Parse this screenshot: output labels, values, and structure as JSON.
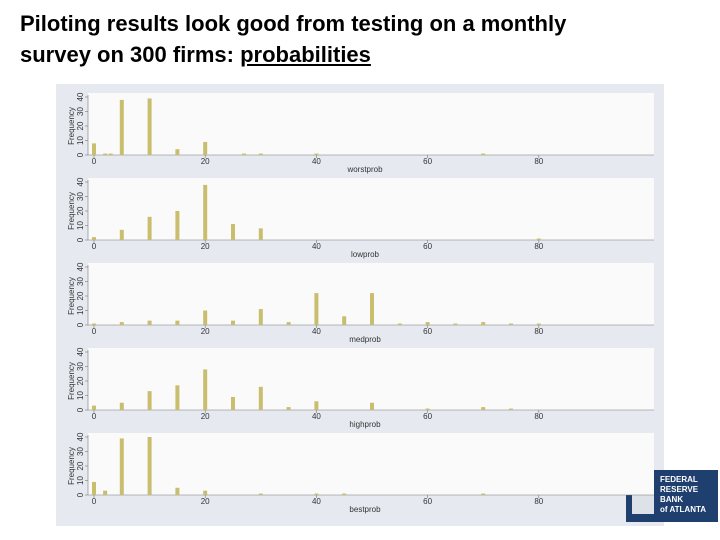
{
  "header": {
    "title": "Piloting results look good from testing on a monthly survey on 300 firms:",
    "title_emphasis": "probabilities"
  },
  "logo": {
    "lines": [
      "FEDERAL",
      "RESERVE",
      "BANK",
      "of ATLANTA"
    ]
  },
  "chart_data": [
    {
      "type": "bar",
      "x_label": "worstprob",
      "y_label": "Frequency",
      "color": "#c9bd6e",
      "x": [
        0,
        2,
        3,
        5,
        10,
        15,
        20,
        27,
        30,
        40,
        70
      ],
      "values": [
        8,
        1,
        1,
        38,
        39,
        4,
        9,
        1,
        1,
        1,
        1
      ],
      "xlim": [
        0,
        100
      ],
      "xticks": [
        0,
        20,
        40,
        60,
        80
      ],
      "ylim": [
        0,
        40
      ],
      "yticks": [
        0,
        10,
        20,
        30,
        40
      ]
    },
    {
      "type": "bar",
      "x_label": "lowprob",
      "y_label": "Frequency",
      "color": "#c9bd6e",
      "x": [
        0,
        5,
        10,
        15,
        20,
        25,
        30,
        80
      ],
      "values": [
        2,
        7,
        16,
        20,
        38,
        11,
        8,
        1
      ],
      "xlim": [
        0,
        100
      ],
      "xticks": [
        0,
        20,
        40,
        60,
        80
      ],
      "ylim": [
        0,
        40
      ],
      "yticks": [
        0,
        10,
        20,
        30,
        40
      ]
    },
    {
      "type": "bar",
      "x_label": "medprob",
      "y_label": "Frequency",
      "color": "#c9bd6e",
      "x": [
        0,
        5,
        10,
        15,
        20,
        25,
        30,
        35,
        40,
        45,
        50,
        55,
        60,
        65,
        70,
        75,
        80
      ],
      "values": [
        1,
        2,
        3,
        3,
        10,
        3,
        11,
        2,
        22,
        6,
        22,
        1,
        2,
        1,
        2,
        1,
        1
      ],
      "xlim": [
        0,
        100
      ],
      "xticks": [
        0,
        20,
        40,
        60,
        80
      ],
      "ylim": [
        0,
        40
      ],
      "yticks": [
        0,
        10,
        20,
        30,
        40
      ]
    },
    {
      "type": "bar",
      "x_label": "highprob",
      "y_label": "Frequency",
      "color": "#c9bd6e",
      "x": [
        0,
        5,
        10,
        15,
        20,
        25,
        30,
        35,
        40,
        50,
        60,
        70,
        75
      ],
      "values": [
        3,
        5,
        13,
        17,
        28,
        9,
        16,
        2,
        6,
        5,
        1,
        2,
        1
      ],
      "xlim": [
        0,
        100
      ],
      "xticks": [
        0,
        20,
        40,
        60,
        80
      ],
      "ylim": [
        0,
        40
      ],
      "yticks": [
        0,
        10,
        20,
        30,
        40
      ]
    },
    {
      "type": "bar",
      "x_label": "bestprob",
      "y_label": "Frequency",
      "color": "#c9bd6e",
      "x": [
        0,
        2,
        5,
        10,
        15,
        20,
        30,
        40,
        45,
        70
      ],
      "values": [
        9,
        3,
        39,
        40,
        5,
        3,
        1,
        1,
        1,
        1
      ],
      "xlim": [
        0,
        100
      ],
      "xticks": [
        0,
        20,
        40,
        60,
        80
      ],
      "ylim": [
        0,
        40
      ],
      "yticks": [
        0,
        10,
        20,
        30,
        40
      ]
    }
  ]
}
